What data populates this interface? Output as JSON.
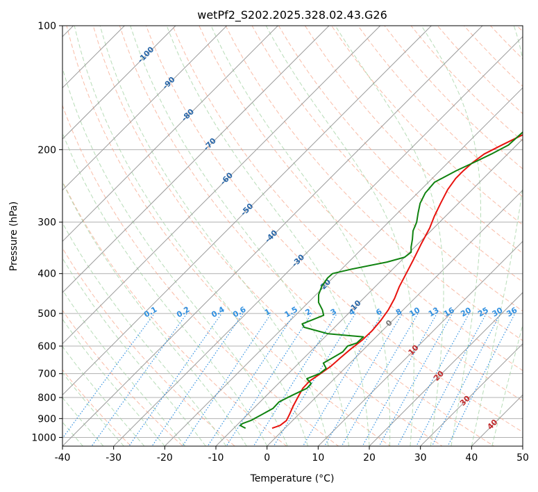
{
  "chart_data": {
    "type": "line",
    "title": "wetPf2_S202.2025.328.02.43.G26",
    "xlabel": "Temperature (°C)",
    "ylabel": "Pressure (hPa)",
    "xlim": [
      -40,
      50
    ],
    "ylim": [
      1050,
      100
    ],
    "x_ticks": [
      -40,
      -30,
      -20,
      -10,
      0,
      10,
      20,
      30,
      40,
      50
    ],
    "y_ticks": [
      100,
      200,
      300,
      400,
      500,
      600,
      700,
      800,
      900,
      1000
    ],
    "skew_deg": 45,
    "colors": {
      "temperature": "#e8120e",
      "dewpoint": "#0f820f",
      "isotherm": "#9a9a9a",
      "dry_adiabat": "#f7a58a",
      "moist_adiabat": "#9fd09f",
      "mixing_ratio": "#2f8fe0",
      "isotherm_label": "#2866a8",
      "hot_isotherm_label": "#c0282a",
      "mixing_label": "#2f8fe0",
      "zero_label": "#777777"
    },
    "isotherm_labels": [
      {
        "value": -100,
        "text": "-100",
        "p": 117
      },
      {
        "value": -90,
        "text": "-90",
        "p": 137
      },
      {
        "value": -80,
        "text": "-80",
        "p": 164
      },
      {
        "value": -70,
        "text": "-70",
        "p": 193
      },
      {
        "value": -60,
        "text": "-60",
        "p": 234
      },
      {
        "value": -50,
        "text": "-50",
        "p": 278
      },
      {
        "value": -40,
        "text": "-40",
        "p": 323
      },
      {
        "value": -30,
        "text": "-30",
        "p": 370
      },
      {
        "value": -20,
        "text": "-20",
        "p": 425
      },
      {
        "value": -10,
        "text": "-10",
        "p": 478
      },
      {
        "value": 0,
        "text": "0",
        "p": 525
      },
      {
        "value": 10,
        "text": "10",
        "p": 610
      },
      {
        "value": 20,
        "text": "20",
        "p": 705
      },
      {
        "value": 30,
        "text": "30",
        "p": 810
      },
      {
        "value": 40,
        "text": "40",
        "p": 925
      }
    ],
    "mixing_ratio_labels": [
      {
        "value": 0.1,
        "text": "0.1"
      },
      {
        "value": 0.2,
        "text": "0.2"
      },
      {
        "value": 0.4,
        "text": "0.4"
      },
      {
        "value": 0.6,
        "text": "0.6"
      },
      {
        "value": 1,
        "text": "1"
      },
      {
        "value": 1.5,
        "text": "1.5"
      },
      {
        "value": 2,
        "text": "2"
      },
      {
        "value": 3,
        "text": "3"
      },
      {
        "value": 4,
        "text": "4"
      },
      {
        "value": 6,
        "text": "6"
      },
      {
        "value": 8,
        "text": "8"
      },
      {
        "value": 10,
        "text": "10"
      },
      {
        "value": 13,
        "text": "13"
      },
      {
        "value": 16,
        "text": "16"
      },
      {
        "value": 20,
        "text": "20"
      },
      {
        "value": 25,
        "text": "25"
      },
      {
        "value": 30,
        "text": "30"
      },
      {
        "value": 36,
        "text": "36"
      }
    ],
    "series": [
      {
        "name": "Temperature",
        "p": [
          950,
          935,
          910,
          880,
          840,
          800,
          760,
          730,
          700,
          670,
          640,
          610,
          580,
          550,
          520,
          490,
          460,
          430,
          400,
          370,
          340,
          310,
          290,
          270,
          250,
          235,
          225,
          215,
          205,
          195,
          185,
          175,
          165,
          155,
          145,
          135,
          125,
          115,
          100
        ],
        "t": [
          -2.5,
          -1.5,
          -1.2,
          -1.8,
          -2.7,
          -3.5,
          -4.3,
          -4.4,
          -3.7,
          -3.1,
          -2.9,
          -2.6,
          -2.1,
          -2.0,
          -2.3,
          -2.9,
          -3.9,
          -5.3,
          -6.5,
          -7.8,
          -9.3,
          -10.8,
          -12.2,
          -13.5,
          -14.8,
          -15.4,
          -15.4,
          -15.2,
          -14.6,
          -12.9,
          -11.0,
          -8.7,
          -6.0,
          -3.5,
          -1.1,
          1.7,
          4.5,
          7.8,
          13.3
        ]
      },
      {
        "name": "Dewpoint",
        "p": [
          950,
          935,
          925,
          910,
          880,
          850,
          820,
          790,
          760,
          740,
          720,
          700,
          680,
          660,
          640,
          620,
          600,
          590,
          570,
          560,
          550,
          540,
          530,
          520,
          505,
          490,
          470,
          450,
          430,
          410,
          400,
          390,
          375,
          365,
          355,
          345,
          330,
          315,
          300,
          285,
          270,
          255,
          240,
          225,
          215,
          205,
          195,
          185,
          175,
          165,
          155,
          145,
          135,
          125,
          115,
          100
        ],
        "t": [
          -7.7,
          -9.3,
          -9.2,
          -8.2,
          -7.2,
          -6.2,
          -6.3,
          -5.0,
          -3.5,
          -3.6,
          -5.4,
          -3.9,
          -3.6,
          -5.2,
          -4.4,
          -3.6,
          -3.8,
          -2.6,
          -2.5,
          -10.0,
          -13.0,
          -16.0,
          -17.0,
          -16.0,
          -14.5,
          -15.8,
          -18.0,
          -19.5,
          -20.5,
          -21.0,
          -20.9,
          -18.0,
          -12.5,
          -10.0,
          -9.7,
          -10.7,
          -12.0,
          -13.5,
          -14.5,
          -16.0,
          -17.5,
          -18.5,
          -18.8,
          -16.8,
          -15.0,
          -13.2,
          -11.6,
          -11.4,
          -11.2,
          -10.3,
          -9.5,
          -8.4,
          -6.7,
          -5.4,
          -4.2,
          -2.6
        ]
      }
    ]
  }
}
